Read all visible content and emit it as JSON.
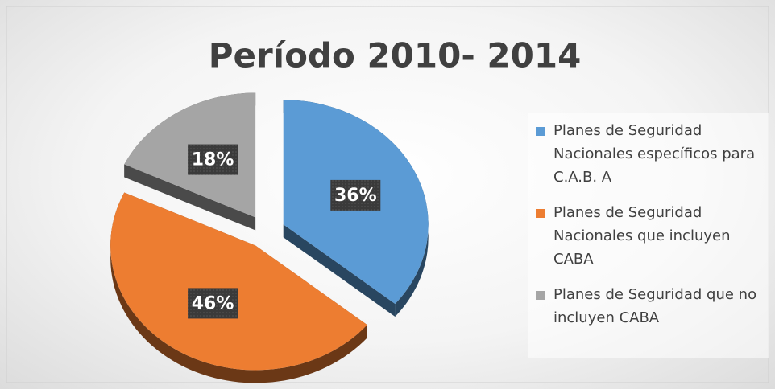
{
  "chart_data": {
    "type": "pie",
    "title": "Período 2010- 2014",
    "categories": [
      "Planes de Seguridad Nacionales específicos para C.A.B. A",
      "Planes de Seguridad Nacionales que incluyen CABA",
      "Planes de Seguridad que no incluyen CABA"
    ],
    "values": [
      36,
      46,
      18
    ],
    "value_labels": [
      "36%",
      "46%",
      "18%"
    ],
    "colors": [
      "#5b9bd5",
      "#ed7d31",
      "#a5a5a5"
    ],
    "legend": "right"
  }
}
